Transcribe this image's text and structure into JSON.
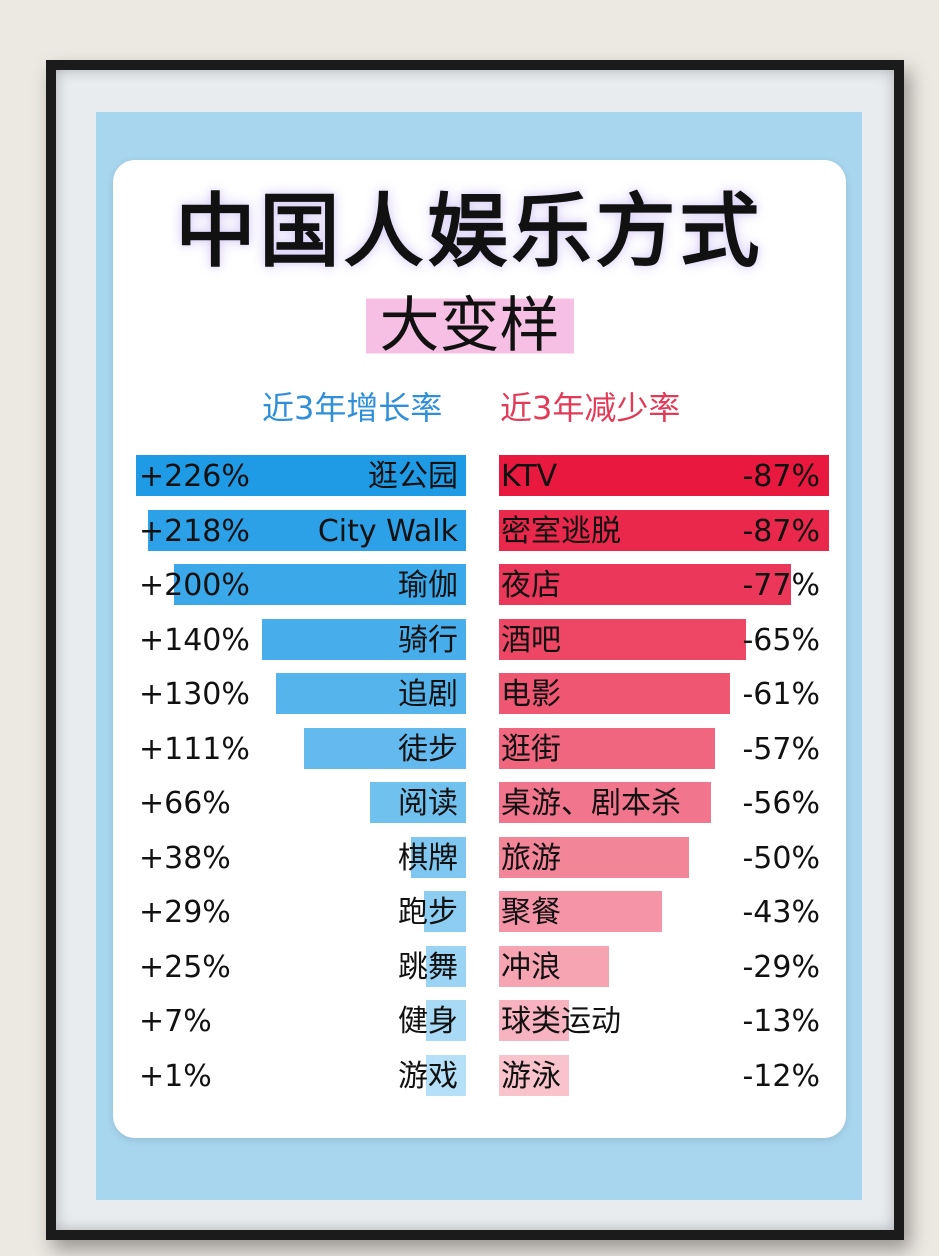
{
  "title": "中国人娱乐方式",
  "subtitle": "大变样",
  "chart_data": {
    "type": "bar",
    "left": {
      "header": "近3年增长率",
      "items": [
        {
          "label": "逛公园",
          "value": 226,
          "value_text": "+226%"
        },
        {
          "label": "City Walk",
          "value": 218,
          "value_text": "+218%"
        },
        {
          "label": "瑜伽",
          "value": 200,
          "value_text": "+200%"
        },
        {
          "label": "骑行",
          "value": 140,
          "value_text": "+140%"
        },
        {
          "label": "追剧",
          "value": 130,
          "value_text": "+130%"
        },
        {
          "label": "徒步",
          "value": 111,
          "value_text": "+111%"
        },
        {
          "label": "阅读",
          "value": 66,
          "value_text": "+66%"
        },
        {
          "label": "棋牌",
          "value": 38,
          "value_text": "+38%"
        },
        {
          "label": "跑步",
          "value": 29,
          "value_text": "+29%"
        },
        {
          "label": "跳舞",
          "value": 25,
          "value_text": "+25%"
        },
        {
          "label": "健身",
          "value": 7,
          "value_text": "+7%"
        },
        {
          "label": "游戏",
          "value": 1,
          "value_text": "+1%"
        }
      ]
    },
    "right": {
      "header": "近3年减少率",
      "items": [
        {
          "label": "KTV",
          "value": -87,
          "value_text": "-87%"
        },
        {
          "label": "密室逃脱",
          "value": -87,
          "value_text": "-87%"
        },
        {
          "label": "夜店",
          "value": -77,
          "value_text": "-77%"
        },
        {
          "label": "酒吧",
          "value": -65,
          "value_text": "-65%"
        },
        {
          "label": "电影",
          "value": -61,
          "value_text": "-61%"
        },
        {
          "label": "逛街",
          "value": -57,
          "value_text": "-57%"
        },
        {
          "label": "桌游、剧本杀",
          "value": -56,
          "value_text": "-56%"
        },
        {
          "label": "旅游",
          "value": -50,
          "value_text": "-50%"
        },
        {
          "label": "聚餐",
          "value": -43,
          "value_text": "-43%"
        },
        {
          "label": "冲浪",
          "value": -29,
          "value_text": "-29%"
        },
        {
          "label": "球类运动",
          "value": -13,
          "value_text": "-13%"
        },
        {
          "label": "游泳",
          "value": -12,
          "value_text": "-12%"
        }
      ]
    },
    "colors": {
      "growth": [
        "#1f9be6",
        "#b6e0f7"
      ],
      "decline": [
        "#e8183f",
        "#f9c3cc"
      ]
    }
  }
}
